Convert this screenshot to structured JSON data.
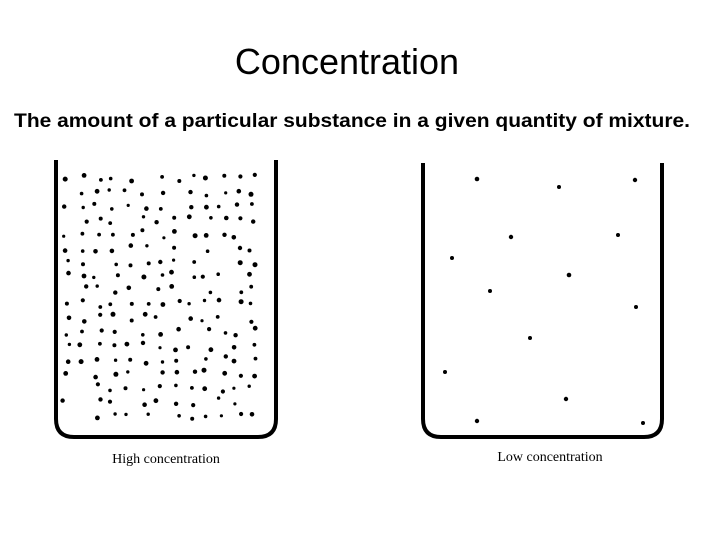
{
  "header": {
    "title": "Concentration",
    "subtitle": "The amount of a particular substance in a given quantity of mixture."
  },
  "beakers": [
    {
      "label": "High concentration"
    },
    {
      "label": "Low concentration"
    }
  ]
}
